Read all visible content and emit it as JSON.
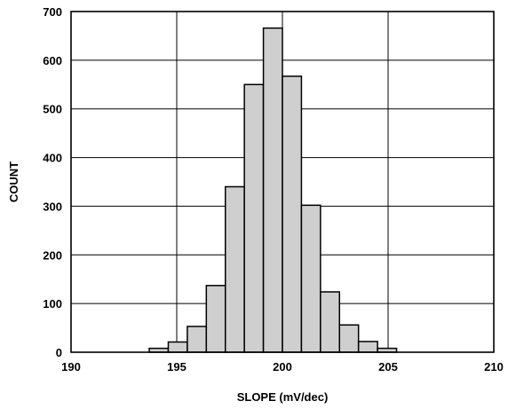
{
  "chart_data": {
    "type": "bar",
    "title": "",
    "xlabel": "SLOPE (mV/dec)",
    "ylabel": "COUNT",
    "xlim": [
      190,
      210
    ],
    "ylim": [
      0,
      700
    ],
    "x_ticks": [
      190,
      195,
      200,
      205,
      210
    ],
    "y_ticks": [
      0,
      100,
      200,
      300,
      400,
      500,
      600,
      700
    ],
    "grid": true,
    "bin_width": 0.9,
    "bins": [
      {
        "x0": 193.7,
        "value": 8
      },
      {
        "x0": 194.6,
        "value": 21
      },
      {
        "x0": 195.5,
        "value": 53
      },
      {
        "x0": 196.4,
        "value": 137
      },
      {
        "x0": 197.3,
        "value": 340
      },
      {
        "x0": 198.2,
        "value": 550
      },
      {
        "x0": 199.1,
        "value": 666
      },
      {
        "x0": 200.0,
        "value": 567
      },
      {
        "x0": 200.9,
        "value": 302
      },
      {
        "x0": 201.8,
        "value": 124
      },
      {
        "x0": 202.7,
        "value": 56
      },
      {
        "x0": 203.6,
        "value": 22
      },
      {
        "x0": 204.5,
        "value": 8
      }
    ]
  }
}
